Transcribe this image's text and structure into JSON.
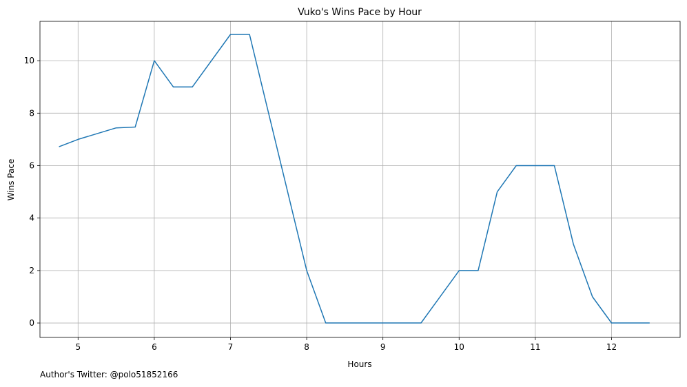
{
  "chart_data": {
    "type": "line",
    "title": "Vuko's Wins Pace by Hour",
    "xlabel": "Hours",
    "ylabel": "Wins Pace",
    "xlim": [
      4.5,
      12.9
    ],
    "ylim": [
      -0.55,
      11.5
    ],
    "xticks": [
      5,
      6,
      7,
      8,
      9,
      10,
      11,
      12
    ],
    "yticks": [
      0,
      2,
      4,
      6,
      8,
      10
    ],
    "grid": true,
    "series": [
      {
        "color": "#1f77b4",
        "x": [
          4.75,
          5.0,
          5.5,
          5.75,
          6.0,
          6.25,
          6.5,
          7.0,
          7.25,
          8.0,
          8.25,
          9.5,
          10.0,
          10.25,
          10.5,
          10.75,
          11.25,
          11.5,
          11.75,
          12.0,
          12.5
        ],
        "y": [
          6.72,
          7.0,
          7.44,
          7.47,
          10.0,
          9.0,
          9.0,
          11.0,
          11.0,
          2.0,
          0.0,
          0.0,
          2.0,
          2.0,
          5.0,
          6.0,
          6.0,
          3.0,
          1.0,
          0.0,
          0.0
        ]
      }
    ]
  },
  "footnote": "Author's Twitter: @polo51852166"
}
